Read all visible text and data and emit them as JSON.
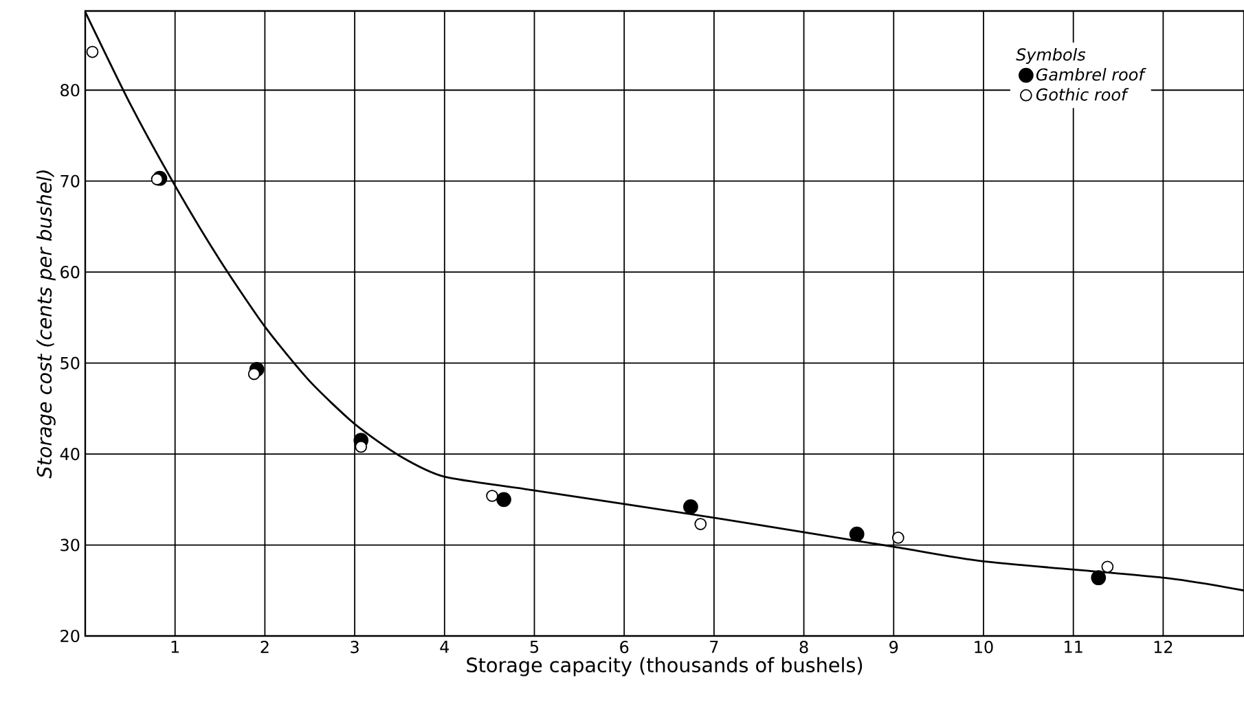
{
  "chart_data": {
    "type": "scatter",
    "xlabel": "Storage capacity  (thousands of bushels)",
    "ylabel": "Storage cost  (cents per bushel)",
    "legend_title": "Symbols",
    "xlim": [
      0,
      12.9
    ],
    "ylim": [
      20,
      88.7
    ],
    "xticks": [
      1,
      2,
      3,
      4,
      5,
      6,
      7,
      8,
      9,
      10,
      11,
      12
    ],
    "yticks": [
      20,
      30,
      40,
      50,
      60,
      70,
      80
    ],
    "grid": true,
    "legend": "top right",
    "series": [
      {
        "name": "Gambrel roof",
        "marker": "circle",
        "color": "#000000",
        "x": [
          0.83,
          1.91,
          3.07,
          4.66,
          6.74,
          8.59,
          11.28
        ],
        "values": [
          70.3,
          49.3,
          41.5,
          35.0,
          34.2,
          31.2,
          26.4
        ]
      },
      {
        "name": "Gothic roof",
        "marker": "circle",
        "color": "#ffffff",
        "x": [
          0.08,
          0.8,
          1.88,
          3.07,
          4.53,
          6.85,
          9.05,
          11.38
        ],
        "values": [
          84.2,
          70.2,
          48.8,
          40.8,
          35.4,
          32.3,
          30.8,
          27.6
        ]
      },
      {
        "type": "line",
        "marker": "none",
        "color": "#000000",
        "x": [
          0,
          0.5,
          1.0,
          1.5,
          2.0,
          2.5,
          3.0,
          3.5,
          4.0,
          5.0,
          7.0,
          9.0,
          10.0,
          12.0,
          12.9
        ],
        "values": [
          88.6,
          78.5,
          69.5,
          61.3,
          54.0,
          48.0,
          43.3,
          39.8,
          37.5,
          36.0,
          33.0,
          29.8,
          28.2,
          26.4,
          25.0
        ]
      }
    ]
  }
}
